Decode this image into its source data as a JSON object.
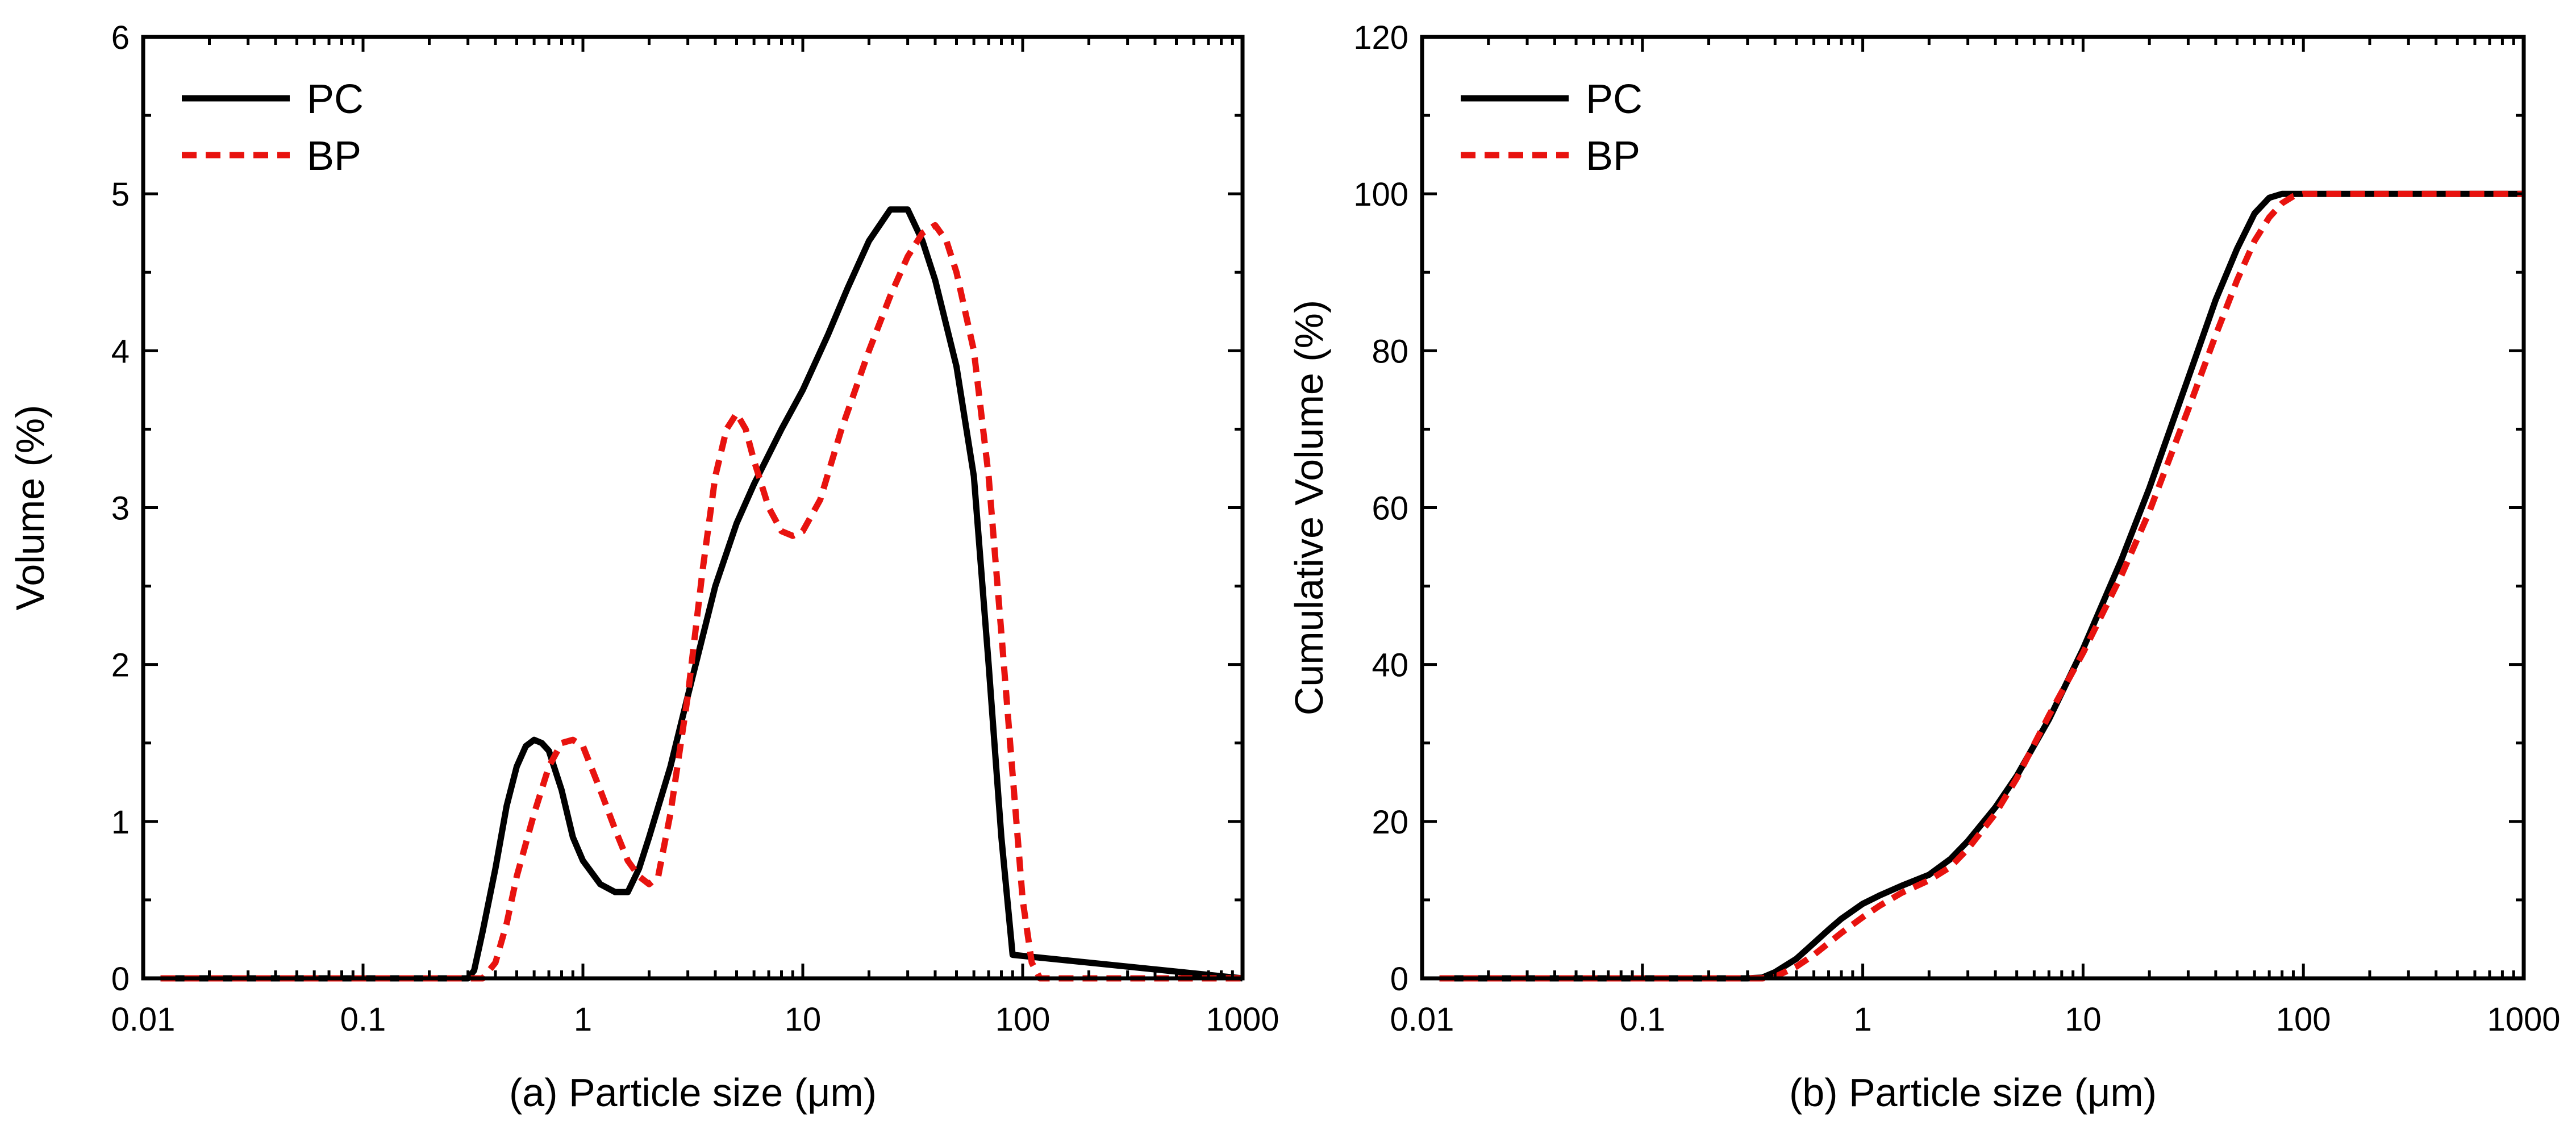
{
  "chart_data": [
    {
      "type": "line",
      "panel": "a",
      "xscale": "log",
      "xlim": [
        0.01,
        1000
      ],
      "ylim": [
        0,
        6
      ],
      "xticks": [
        "0.01",
        "0.1",
        "1",
        "10",
        "100",
        "1000"
      ],
      "yticks": [
        "0",
        "1",
        "2",
        "3",
        "4",
        "5",
        "6"
      ],
      "xlabel": "(a) Particle size (μm)",
      "ylabel": "Volume (%)",
      "legend_position": "top-left",
      "series": [
        {
          "name": "PC",
          "color": "#000000",
          "dash": "solid",
          "x": [
            0.012,
            0.3,
            0.32,
            0.35,
            0.4,
            0.45,
            0.5,
            0.55,
            0.6,
            0.65,
            0.7,
            0.8,
            0.9,
            1.0,
            1.2,
            1.4,
            1.6,
            1.8,
            2.0,
            2.5,
            3.0,
            4.0,
            5.0,
            6.0,
            8.0,
            10,
            13,
            16,
            20,
            25,
            30,
            35,
            40,
            50,
            60,
            70,
            80,
            90,
            1000
          ],
          "values": [
            0,
            0,
            0.05,
            0.3,
            0.7,
            1.1,
            1.35,
            1.48,
            1.52,
            1.5,
            1.45,
            1.2,
            0.9,
            0.75,
            0.6,
            0.55,
            0.55,
            0.7,
            0.9,
            1.35,
            1.8,
            2.5,
            2.9,
            3.15,
            3.5,
            3.75,
            4.1,
            4.4,
            4.7,
            4.9,
            4.9,
            4.7,
            4.45,
            3.9,
            3.2,
            2.0,
            0.9,
            0.15,
            0
          ]
        },
        {
          "name": "BP",
          "color": "#e8130f",
          "dash": "dashed",
          "x": [
            0.012,
            0.35,
            0.4,
            0.45,
            0.5,
            0.6,
            0.7,
            0.8,
            0.9,
            1.0,
            1.2,
            1.4,
            1.6,
            1.8,
            2.0,
            2.2,
            2.5,
            3.0,
            3.5,
            4.0,
            4.5,
            5.0,
            5.5,
            6.0,
            7.0,
            8.0,
            9.0,
            10,
            12,
            15,
            20,
            25,
            30,
            35,
            40,
            45,
            50,
            60,
            70,
            80,
            90,
            100,
            110,
            120,
            1000
          ],
          "values": [
            0,
            0,
            0.1,
            0.35,
            0.65,
            1.05,
            1.35,
            1.5,
            1.52,
            1.48,
            1.2,
            0.95,
            0.75,
            0.65,
            0.6,
            0.65,
            1.05,
            1.8,
            2.6,
            3.2,
            3.5,
            3.6,
            3.5,
            3.3,
            3.0,
            2.85,
            2.82,
            2.85,
            3.05,
            3.5,
            4.0,
            4.35,
            4.6,
            4.75,
            4.8,
            4.7,
            4.5,
            4.0,
            3.2,
            2.2,
            1.3,
            0.5,
            0.1,
            0,
            0
          ]
        }
      ]
    },
    {
      "type": "line",
      "panel": "b",
      "xscale": "log",
      "xlim": [
        0.01,
        1000
      ],
      "ylim": [
        0,
        120
      ],
      "xticks": [
        "0.01",
        "0.1",
        "1",
        "10",
        "100",
        "1000"
      ],
      "yticks": [
        "0",
        "20",
        "40",
        "60",
        "80",
        "100",
        "120"
      ],
      "xlabel": "(b) Particle size (μm)",
      "ylabel": "Cumulative Volume (%)",
      "legend_position": "top-left",
      "series": [
        {
          "name": "PC",
          "color": "#000000",
          "dash": "solid",
          "x": [
            0.012,
            0.3,
            0.35,
            0.4,
            0.5,
            0.6,
            0.7,
            0.8,
            1.0,
            1.2,
            1.5,
            2.0,
            2.5,
            3.0,
            4.0,
            5.0,
            7.0,
            10,
            15,
            20,
            30,
            40,
            50,
            60,
            70,
            80,
            1000
          ],
          "values": [
            0,
            0,
            0.1,
            0.8,
            2.5,
            4.5,
            6.2,
            7.6,
            9.5,
            10.6,
            11.8,
            13.2,
            15.2,
            17.5,
            21.8,
            25.8,
            33.0,
            42.0,
            53.5,
            62.5,
            76.5,
            86.5,
            93.0,
            97.5,
            99.5,
            100,
            100
          ]
        },
        {
          "name": "BP",
          "color": "#e8130f",
          "dash": "dashed",
          "x": [
            0.012,
            0.35,
            0.4,
            0.5,
            0.6,
            0.7,
            0.8,
            1.0,
            1.2,
            1.5,
            2.0,
            2.5,
            3.0,
            4.0,
            5.0,
            7.0,
            10,
            15,
            20,
            30,
            40,
            50,
            60,
            70,
            80,
            90,
            100,
            1000
          ],
          "values": [
            0,
            0,
            0.2,
            1.5,
            3.0,
            4.5,
            5.8,
            7.8,
            9.3,
            10.9,
            12.5,
            14.2,
            16.5,
            21.0,
            25.5,
            33.5,
            41.5,
            51.5,
            59.5,
            72.5,
            82.0,
            89.0,
            94.0,
            97.0,
            98.8,
            99.7,
            100,
            100
          ]
        }
      ]
    }
  ]
}
